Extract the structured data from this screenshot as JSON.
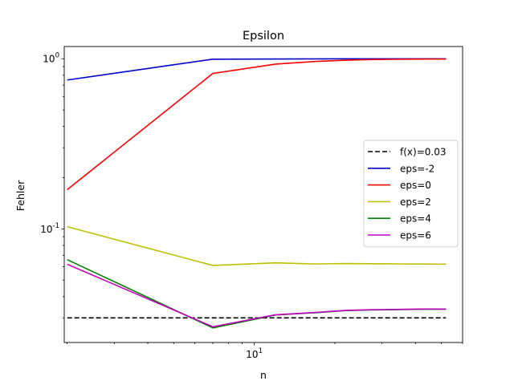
{
  "chart_data": {
    "type": "line",
    "title": "Epsilon",
    "xlabel": "n",
    "ylabel": "Fehler",
    "xscale": "log",
    "yscale": "log",
    "xlim": [
      1.95,
      60
    ],
    "ylim": [
      0.0215,
      1.18
    ],
    "grid": false,
    "legend": "center-right",
    "x_ticks": [
      {
        "value": 10,
        "label": "10^1"
      }
    ],
    "y_ticks": [
      {
        "value": 0.1,
        "label": "10^-1"
      },
      {
        "value": 1,
        "label": "10^0"
      }
    ],
    "x": [
      2,
      7,
      12,
      17,
      22,
      27,
      32,
      37,
      42,
      47,
      52
    ],
    "series": [
      {
        "name": "f(x)=0.03",
        "color": "#000000",
        "dash": true,
        "values": [
          0.03,
          0.03,
          0.03,
          0.03,
          0.03,
          0.03,
          0.03,
          0.03,
          0.03,
          0.03,
          0.03
        ]
      },
      {
        "name": "eps=-2",
        "color": "#0000cc",
        "dash": false,
        "values": [
          0.75,
          0.994,
          0.997,
          0.998,
          0.999,
          0.999,
          0.999,
          0.999,
          0.999,
          0.999,
          0.999
        ]
      },
      {
        "name": "eps=0",
        "color": "#ff0000",
        "dash": false,
        "values": [
          0.17,
          0.82,
          0.93,
          0.965,
          0.98,
          0.988,
          0.992,
          0.994,
          0.995,
          0.996,
          0.996
        ]
      },
      {
        "name": "eps=2",
        "color": "#bfbf00",
        "dash": false,
        "values": [
          0.103,
          0.061,
          0.0632,
          0.0622,
          0.0626,
          0.0624,
          0.0623,
          0.0622,
          0.0622,
          0.0621,
          0.0621
        ]
      },
      {
        "name": "eps=4",
        "color": "#008000",
        "dash": false,
        "values": [
          0.066,
          0.0262,
          0.0312,
          0.0322,
          0.0331,
          0.0334,
          0.0335,
          0.0336,
          0.0337,
          0.0337,
          0.0337
        ]
      },
      {
        "name": "eps=6",
        "color": "#bf00bf",
        "dash": false,
        "values": [
          0.062,
          0.0266,
          0.0313,
          0.0323,
          0.0332,
          0.0335,
          0.0336,
          0.0337,
          0.0338,
          0.0338,
          0.0338
        ]
      }
    ]
  }
}
